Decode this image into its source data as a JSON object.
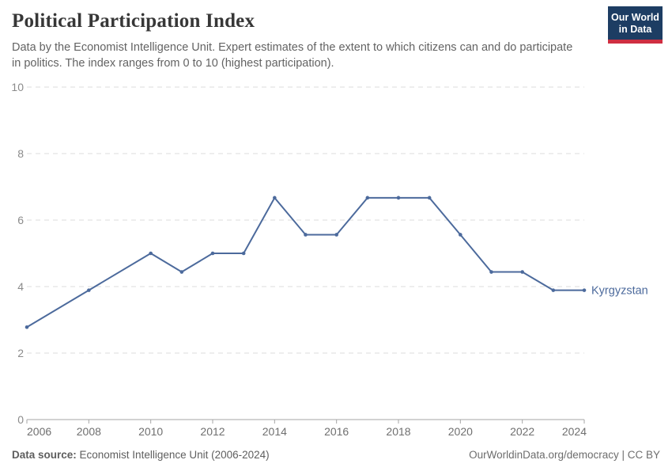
{
  "header": {
    "title": "Political Participation Index",
    "subtitle_line1": "Data by the Economist Intelligence Unit. Expert estimates of the extent to which citizens can and do participate",
    "subtitle_line2": "in politics. The index ranges from 0 to 10 (highest participation).",
    "logo": {
      "line1": "Our World",
      "line2": "in Data",
      "bg_color": "#1d3d63",
      "stripe_color": "#cf2e41"
    }
  },
  "chart_data": {
    "type": "line",
    "title": "Political Participation Index",
    "xlabel": "",
    "ylabel": "",
    "xlim": [
      2006,
      2024
    ],
    "ylim": [
      0,
      10
    ],
    "x_ticks": [
      2006,
      2008,
      2010,
      2012,
      2014,
      2016,
      2018,
      2020,
      2022,
      2024
    ],
    "y_ticks": [
      0,
      2,
      4,
      6,
      8,
      10
    ],
    "grid": "horizontal-dashed",
    "legend_position": "end-of-line-label",
    "series": [
      {
        "name": "Kyrgyzstan",
        "color": "#4C6A9C",
        "x": [
          2006,
          2008,
          2010,
          2011,
          2012,
          2013,
          2014,
          2015,
          2016,
          2017,
          2018,
          2019,
          2020,
          2021,
          2022,
          2023,
          2024
        ],
        "values": [
          2.78,
          3.89,
          5.0,
          4.44,
          5.0,
          5.0,
          6.67,
          5.56,
          5.56,
          6.67,
          6.67,
          6.67,
          5.56,
          4.44,
          4.44,
          3.89,
          3.89
        ]
      }
    ]
  },
  "footer": {
    "source_label": "Data source:",
    "source_text": " Economist Intelligence Unit (2006-2024)",
    "rights": "OurWorldinData.org/democracy | CC BY"
  },
  "colors": {
    "series_line": "#4C6A9C",
    "brand_navy": "#1d3d63",
    "brand_red": "#cf2e41"
  }
}
